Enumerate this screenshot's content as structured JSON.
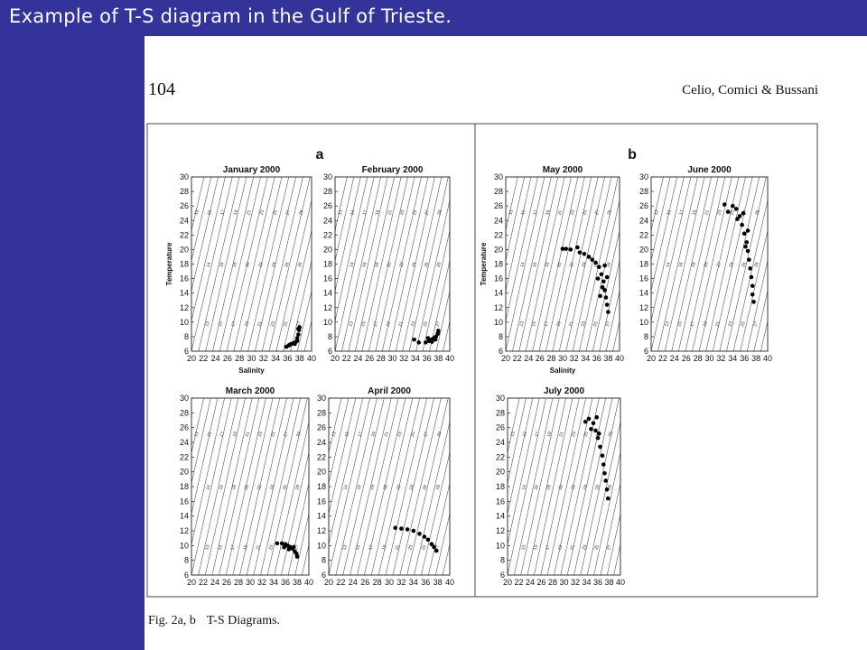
{
  "slide": {
    "title": "Example of T-S diagram in the Gulf of Trieste.",
    "colors": {
      "bar": "#333399",
      "title_text": "#ffffff"
    }
  },
  "paper": {
    "page_number": "104",
    "running_head": "Celio, Comici & Bussani",
    "panel_letters": [
      "a",
      "b"
    ],
    "caption_label": "Fig. 2a, b",
    "caption_title": "T-S Diagrams."
  },
  "chart_data": [
    {
      "type": "scatter",
      "panel": "a",
      "title": "January 2000",
      "xlabel": "Salinity",
      "ylabel": "Temperature",
      "xlim": [
        20,
        40
      ],
      "ylim": [
        6,
        30
      ],
      "xticks": [
        20,
        22,
        24,
        26,
        28,
        30,
        32,
        34,
        36,
        38,
        40
      ],
      "yticks": [
        6,
        8,
        10,
        12,
        14,
        16,
        18,
        20,
        22,
        24,
        26,
        28,
        30
      ],
      "points": [
        [
          35.8,
          6.6
        ],
        [
          36.2,
          6.8
        ],
        [
          36.6,
          7.0
        ],
        [
          37.0,
          7.1
        ],
        [
          37.4,
          7.3
        ],
        [
          37.6,
          7.8
        ],
        [
          37.8,
          8.3
        ],
        [
          37.9,
          8.9
        ],
        [
          38.0,
          9.3
        ],
        [
          37.6,
          7.4
        ],
        [
          37.2,
          7.0
        ],
        [
          36.4,
          6.9
        ],
        [
          37.8,
          9.1
        ]
      ]
    },
    {
      "type": "scatter",
      "panel": "a",
      "title": "February 2000",
      "xlabel": "",
      "ylabel": "",
      "xlim": [
        20,
        40
      ],
      "ylim": [
        6,
        30
      ],
      "xticks": [
        20,
        22,
        24,
        26,
        28,
        30,
        32,
        34,
        36,
        38,
        40
      ],
      "yticks": [
        6,
        8,
        10,
        12,
        14,
        16,
        18,
        20,
        22,
        24,
        26,
        28,
        30
      ],
      "points": [
        [
          33.8,
          7.6
        ],
        [
          34.6,
          7.2
        ],
        [
          35.8,
          7.2
        ],
        [
          36.4,
          7.4
        ],
        [
          36.8,
          7.6
        ],
        [
          37.2,
          7.8
        ],
        [
          37.6,
          8.0
        ],
        [
          37.9,
          8.4
        ],
        [
          38.0,
          8.8
        ],
        [
          37.5,
          7.6
        ],
        [
          36.9,
          7.3
        ],
        [
          36.2,
          7.8
        ]
      ]
    },
    {
      "type": "scatter",
      "panel": "a",
      "title": "March 2000",
      "xlabel": "",
      "ylabel": "",
      "xlim": [
        20,
        40
      ],
      "ylim": [
        6,
        30
      ],
      "xticks": [
        20,
        22,
        24,
        26,
        28,
        30,
        32,
        34,
        36,
        38,
        40
      ],
      "yticks": [
        6,
        8,
        10,
        12,
        14,
        16,
        18,
        20,
        22,
        24,
        26,
        28,
        30
      ],
      "points": [
        [
          34.6,
          10.3
        ],
        [
          35.4,
          10.3
        ],
        [
          36.0,
          10.2
        ],
        [
          36.4,
          10.0
        ],
        [
          36.8,
          9.8
        ],
        [
          37.2,
          9.6
        ],
        [
          37.6,
          9.2
        ],
        [
          37.9,
          8.9
        ],
        [
          38.0,
          8.5
        ],
        [
          35.8,
          9.8
        ],
        [
          36.6,
          9.5
        ],
        [
          37.4,
          9.8
        ]
      ]
    },
    {
      "type": "scatter",
      "panel": "a",
      "title": "April 2000",
      "xlabel": "",
      "ylabel": "",
      "xlim": [
        20,
        40
      ],
      "ylim": [
        6,
        30
      ],
      "xticks": [
        20,
        22,
        24,
        26,
        28,
        30,
        32,
        34,
        36,
        38,
        40
      ],
      "yticks": [
        6,
        8,
        10,
        12,
        14,
        16,
        18,
        20,
        22,
        24,
        26,
        28,
        30
      ],
      "points": [
        [
          31.0,
          12.4
        ],
        [
          32.0,
          12.3
        ],
        [
          33.0,
          12.2
        ],
        [
          34.0,
          12.0
        ],
        [
          35.0,
          11.6
        ],
        [
          35.8,
          11.2
        ],
        [
          36.4,
          10.8
        ],
        [
          37.0,
          10.2
        ],
        [
          37.4,
          9.8
        ],
        [
          37.8,
          9.3
        ]
      ]
    },
    {
      "type": "scatter",
      "panel": "b",
      "title": "May 2000",
      "xlabel": "Salinity",
      "ylabel": "Temperature",
      "xlim": [
        20,
        40
      ],
      "ylim": [
        6,
        30
      ],
      "xticks": [
        20,
        22,
        24,
        26,
        28,
        30,
        32,
        34,
        36,
        38,
        40
      ],
      "yticks": [
        6,
        8,
        10,
        12,
        14,
        16,
        18,
        20,
        22,
        24,
        26,
        28,
        30
      ],
      "points": [
        [
          30.0,
          20.1
        ],
        [
          30.6,
          20.1
        ],
        [
          31.4,
          20.0
        ],
        [
          32.6,
          20.3
        ],
        [
          33.0,
          19.6
        ],
        [
          33.8,
          19.4
        ],
        [
          34.6,
          19.0
        ],
        [
          35.2,
          18.6
        ],
        [
          35.8,
          18.2
        ],
        [
          36.4,
          17.6
        ],
        [
          36.8,
          16.6
        ],
        [
          37.2,
          15.6
        ],
        [
          37.4,
          14.4
        ],
        [
          37.6,
          13.4
        ],
        [
          37.8,
          12.4
        ],
        [
          38.0,
          11.4
        ],
        [
          37.0,
          14.8
        ],
        [
          36.2,
          16.0
        ],
        [
          36.6,
          13.6
        ],
        [
          37.4,
          17.8
        ],
        [
          37.8,
          16.2
        ]
      ]
    },
    {
      "type": "scatter",
      "panel": "b",
      "title": "June 2000",
      "xlabel": "",
      "ylabel": "",
      "xlim": [
        20,
        40
      ],
      "ylim": [
        6,
        30
      ],
      "xticks": [
        20,
        22,
        24,
        26,
        28,
        30,
        32,
        34,
        36,
        38,
        40
      ],
      "yticks": [
        6,
        8,
        10,
        12,
        14,
        16,
        18,
        20,
        22,
        24,
        26,
        28,
        30
      ],
      "points": [
        [
          32.6,
          26.2
        ],
        [
          33.2,
          25.2
        ],
        [
          34.0,
          26.0
        ],
        [
          34.6,
          25.6
        ],
        [
          35.2,
          24.6
        ],
        [
          35.6,
          23.4
        ],
        [
          36.0,
          22.2
        ],
        [
          36.4,
          21.0
        ],
        [
          36.6,
          19.8
        ],
        [
          36.8,
          18.6
        ],
        [
          37.0,
          17.4
        ],
        [
          37.2,
          16.2
        ],
        [
          37.4,
          15.0
        ],
        [
          37.4,
          13.8
        ],
        [
          37.6,
          12.8
        ],
        [
          34.8,
          24.2
        ],
        [
          35.8,
          25.0
        ],
        [
          36.2,
          20.4
        ],
        [
          36.6,
          22.6
        ]
      ]
    },
    {
      "type": "scatter",
      "panel": "b",
      "title": "July 2000",
      "xlabel": "",
      "ylabel": "",
      "xlim": [
        20,
        40
      ],
      "ylim": [
        6,
        30
      ],
      "xticks": [
        20,
        22,
        24,
        26,
        28,
        30,
        32,
        34,
        36,
        38,
        40
      ],
      "yticks": [
        6,
        8,
        10,
        12,
        14,
        16,
        18,
        20,
        22,
        24,
        26,
        28,
        30
      ],
      "points": [
        [
          33.8,
          26.8
        ],
        [
          34.4,
          27.2
        ],
        [
          35.2,
          26.6
        ],
        [
          35.6,
          25.6
        ],
        [
          36.0,
          24.6
        ],
        [
          36.4,
          23.4
        ],
        [
          36.8,
          22.2
        ],
        [
          37.0,
          21.0
        ],
        [
          37.2,
          19.8
        ],
        [
          37.4,
          18.8
        ],
        [
          37.6,
          17.6
        ],
        [
          37.8,
          16.4
        ],
        [
          34.8,
          25.8
        ],
        [
          35.8,
          27.4
        ],
        [
          36.2,
          25.2
        ]
      ]
    }
  ]
}
